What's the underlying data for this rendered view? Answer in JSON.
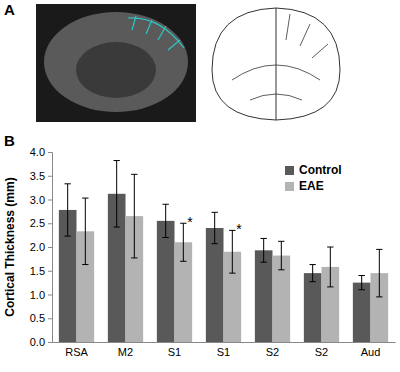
{
  "chart_data": {
    "type": "bar",
    "panel_labels": [
      "A",
      "B"
    ],
    "y_label": "Cortical Thickness (mm)",
    "categories": [
      "RSA",
      "M2",
      "S1",
      "S1",
      "S2",
      "S2",
      "Aud"
    ],
    "series": [
      {
        "name": "Control",
        "color": "#595959",
        "values": [
          2.78,
          3.12,
          2.55,
          2.4,
          1.93,
          1.45,
          1.25
        ],
        "errors": [
          0.55,
          0.7,
          0.35,
          0.33,
          0.25,
          0.18,
          0.15
        ]
      },
      {
        "name": "EAE",
        "color": "#b3b3b3",
        "values": [
          2.33,
          2.65,
          2.1,
          1.9,
          1.82,
          1.58,
          1.45
        ],
        "errors": [
          0.7,
          0.88,
          0.4,
          0.45,
          0.3,
          0.42,
          0.5
        ],
        "significance": [
          null,
          null,
          "*",
          "*",
          null,
          null,
          null
        ]
      }
    ],
    "ylim": [
      0,
      4
    ],
    "yticks": [
      {
        "value": 0,
        "label": "0.0"
      },
      {
        "value": 0.5,
        "label": "0.5"
      },
      {
        "value": 1,
        "label": "1.0"
      },
      {
        "value": 1.5,
        "label": "1.5"
      },
      {
        "value": 2,
        "label": "2.0"
      },
      {
        "value": 2.5,
        "label": "2.5"
      },
      {
        "value": 3,
        "label": "3.0"
      },
      {
        "value": 3.5,
        "label": "3.5"
      },
      {
        "value": 4,
        "label": "4.0"
      }
    ],
    "grid": false,
    "legend": "upper-right"
  }
}
